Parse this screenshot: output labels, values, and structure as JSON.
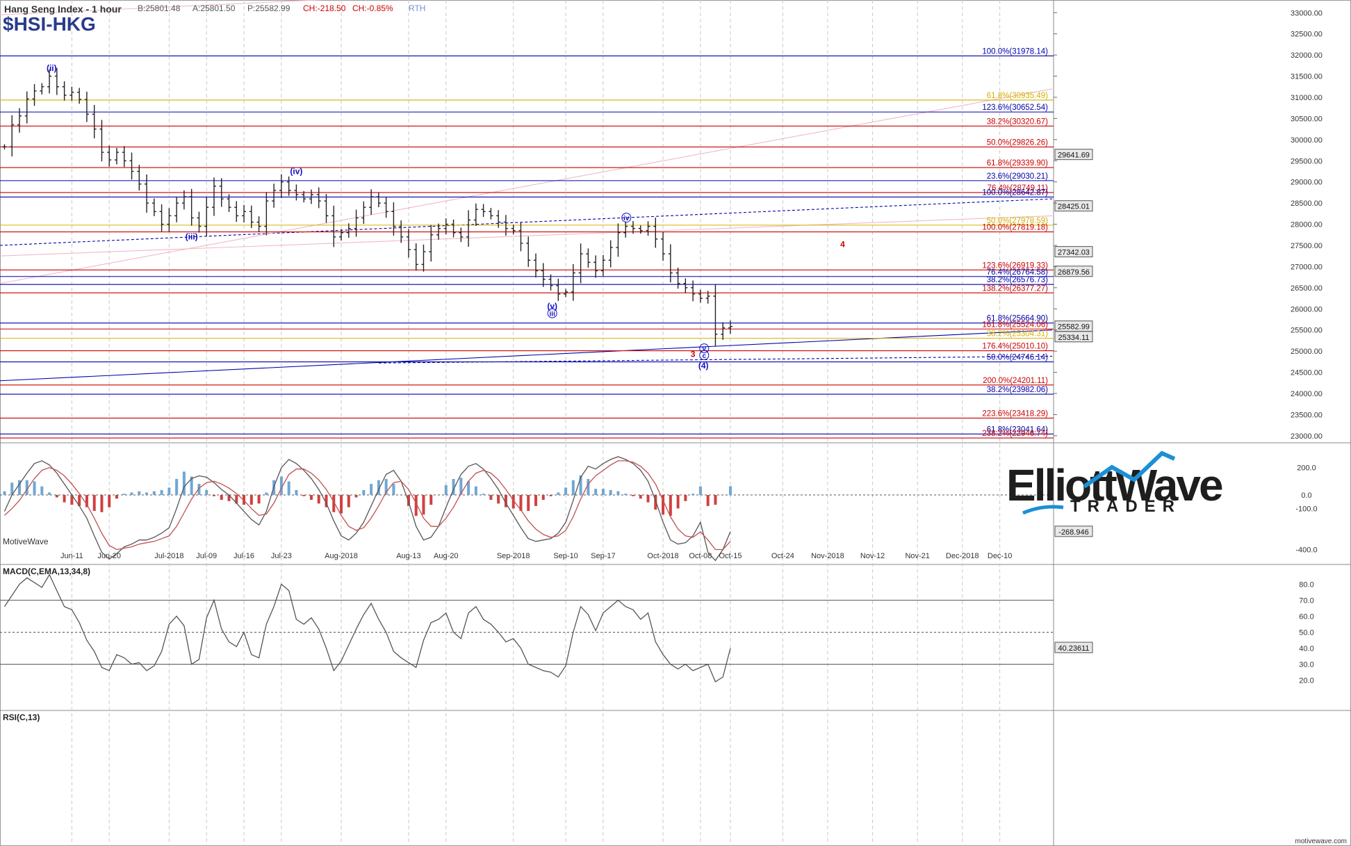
{
  "header": {
    "title": "Hang Seng Index - 1 hour",
    "bid": "B:25801.48",
    "ask": "A:25801.50",
    "price": "P:25582.99",
    "change": "CH:-218.50",
    "change_pct": "CH:-0.85%",
    "session": "RTH",
    "symbol": "$HSI-HKG"
  },
  "watermark": {
    "line1": "ElliottWave",
    "line2": "TRADER",
    "brand": "MotiveWave",
    "footer": "motivewave.com"
  },
  "colors": {
    "bars": "#222222",
    "fib_red": "#cc0000",
    "fib_blue": "#0000aa",
    "fib_gold": "#d4b000",
    "label_blue": "#1010c0",
    "label_red": "#d40000",
    "macd_up": "#6fa7d4",
    "macd_down": "#d04040",
    "macd_line": "#555555",
    "signal_line": "#c05050",
    "rsi_line": "#555555"
  },
  "chart_data": [
    {
      "type": "line",
      "name": "price",
      "title": "Hang Seng Index - 1 hour",
      "ylim": [
        22850,
        33300
      ],
      "y_ticks": [
        23000,
        23500,
        24000,
        24500,
        25000,
        25500,
        26000,
        26500,
        27000,
        27500,
        28000,
        28500,
        29000,
        29500,
        30000,
        30500,
        31000,
        31500,
        32000,
        32500,
        33000
      ],
      "y_tick_labels": [
        "23000.00",
        "23500.00",
        "24000.00",
        "24500.00",
        "25000.00",
        "25500.00",
        "26000.00",
        "26500.00",
        "27000.00",
        "27500.00",
        "28000.00",
        "28500.00",
        "29000.00",
        "29500.00",
        "30000.00",
        "30500.00",
        "31000.00",
        "31500.00",
        "32000.00",
        "32500.00",
        "33000.00"
      ],
      "x_labels": [
        "Jun-11",
        "Jun-20",
        "Jul-2018",
        "Jul-09",
        "Jul-16",
        "Jul-23",
        "Aug-2018",
        "Aug-13",
        "Aug-20",
        "Sep-2018",
        "Sep-10",
        "Sep-17",
        "Oct-2018",
        "Oct-08",
        "Oct-15",
        "Oct-24",
        "Nov-2018",
        "Nov-12",
        "Nov-21",
        "Dec-2018",
        "Dec-10"
      ],
      "x_label_index": [
        9,
        14,
        22,
        27,
        32,
        37,
        45,
        54,
        59,
        68,
        75,
        80,
        88,
        93,
        97,
        104,
        110,
        116,
        122,
        128,
        133
      ],
      "x_index_range": [
        -0.6,
        140
      ],
      "closes": [
        29830,
        30350,
        30560,
        30960,
        31150,
        31250,
        31500,
        31250,
        31050,
        31120,
        30950,
        30600,
        30250,
        29700,
        29520,
        29700,
        29500,
        29250,
        28950,
        28500,
        28300,
        28000,
        28200,
        28500,
        28650,
        28150,
        27950,
        28400,
        28900,
        28600,
        28400,
        28200,
        28300,
        28050,
        27950,
        28550,
        28800,
        29000,
        28800,
        28700,
        28600,
        28700,
        28550,
        28200,
        27700,
        27800,
        27900,
        28150,
        28400,
        28650,
        28500,
        28300,
        27950,
        27700,
        27400,
        27050,
        27350,
        27750,
        27900,
        28000,
        27800,
        27700,
        28100,
        28350,
        28300,
        28200,
        28050,
        27900,
        27850,
        27550,
        27150,
        26900,
        26700,
        26550,
        26350,
        26400,
        26850,
        27300,
        27100,
        26900,
        27150,
        27450,
        27800,
        27950,
        27900,
        27850,
        27950,
        27650,
        27300,
        26850,
        26600,
        26500,
        26350,
        26250,
        26300,
        25400,
        25550,
        25583
      ],
      "annotations": [
        {
          "text": "(ii)",
          "i": 6.3,
          "v": 31620,
          "color": "blue"
        },
        {
          "text": "(iii)",
          "i": 25,
          "v": 27640,
          "color": "blue"
        },
        {
          "text": "(iv)",
          "i": 39,
          "v": 29180,
          "color": "blue"
        },
        {
          "text": "(v)",
          "i": 73.2,
          "v": 26000,
          "color": "blue"
        },
        {
          "text": "iii",
          "i": 73.2,
          "v": 25830,
          "color": "blue",
          "circled": true
        },
        {
          "text": "iv",
          "i": 83.1,
          "v": 28090,
          "color": "blue",
          "circled": true
        },
        {
          "text": "v",
          "i": 93.5,
          "v": 25000,
          "color": "blue",
          "circled": true
        },
        {
          "text": "c",
          "i": 93.5,
          "v": 24840,
          "color": "blue",
          "circled": true
        },
        {
          "text": "3",
          "i": 92,
          "v": 24860,
          "color": "red"
        },
        {
          "text": "(4)",
          "i": 93.4,
          "v": 24590,
          "color": "blue"
        },
        {
          "text": "4",
          "i": 112,
          "v": 27460,
          "color": "red"
        }
      ],
      "fib_levels": [
        {
          "label": "100.0%(31978.14)",
          "v": 31978.14,
          "color": "blue"
        },
        {
          "label": "61.8%(30935.49)",
          "v": 30935.49,
          "color": "gold"
        },
        {
          "label": "123.6%(30652.54)",
          "v": 30652.54,
          "color": "blue"
        },
        {
          "label": "38.2%(30320.67)",
          "v": 30320.67,
          "color": "red"
        },
        {
          "label": "50.0%(29826.26)",
          "v": 29826.26,
          "color": "red"
        },
        {
          "label": "61.8%(29339.90)",
          "v": 29339.9,
          "color": "red"
        },
        {
          "label": "23.6%(29030.21)",
          "v": 29030.21,
          "color": "blue"
        },
        {
          "label": "76.4%(28749.11)",
          "v": 28749.11,
          "color": "red"
        },
        {
          "label": "100.0%(28642.87)",
          "v": 28642.87,
          "color": "blue"
        },
        {
          "label": "50.0%(27978.59)",
          "v": 27978.59,
          "color": "gold"
        },
        {
          "label": "100.0%(27819.18)",
          "v": 27819.18,
          "color": "red"
        },
        {
          "label": "123.6%(26919.33)",
          "v": 26919.33,
          "color": "red"
        },
        {
          "label": "76.4%(26764.58)",
          "v": 26764.58,
          "color": "blue"
        },
        {
          "label": "38.2%(26576.73)",
          "v": 26576.73,
          "color": "blue"
        },
        {
          "label": "138.2%(26377.27)",
          "v": 26377.27,
          "color": "red"
        },
        {
          "label": "61.8%(25664.90)",
          "v": 25664.9,
          "color": "blue"
        },
        {
          "label": "161.8%(25524.06)",
          "v": 25524.06,
          "color": "red"
        },
        {
          "label": "38.2%(25304.31)",
          "v": 25304.31,
          "color": "gold"
        },
        {
          "label": "176.4%(25010.10)",
          "v": 25010.1,
          "color": "red"
        },
        {
          "label": "50.0%(24746.14)",
          "v": 24746.14,
          "color": "blue"
        },
        {
          "label": "200.0%(24201.11)",
          "v": 24201.11,
          "color": "red"
        },
        {
          "label": "38.2%(23982.06)",
          "v": 23982.06,
          "color": "blue"
        },
        {
          "label": "223.6%(23418.29)",
          "v": 23418.29,
          "color": "red"
        },
        {
          "label": "61.8%(23041.64)",
          "v": 23041.64,
          "color": "blue"
        },
        {
          "label": "238.2%(22946.74)",
          "v": 22946.74,
          "color": "red"
        }
      ],
      "price_tags": [
        {
          "label": "29641.69",
          "v": 29641.69
        },
        {
          "label": "28425.01",
          "v": 28425.01
        },
        {
          "label": "27342.03",
          "v": 27342.03
        },
        {
          "label": "26879.56",
          "v": 26879.56
        },
        {
          "label": "25582.99",
          "v": 25582.99
        },
        {
          "label": "25334.11",
          "v": 25334.11
        }
      ],
      "trendlines": [
        {
          "from": [
            -0.6,
            27500
          ],
          "to": [
            140,
            28600
          ],
          "color": "blue",
          "dashed": true
        },
        {
          "from": [
            -0.6,
            24300
          ],
          "to": [
            140,
            25500
          ],
          "color": "blue",
          "dashed": false
        },
        {
          "from": [
            50,
            24720
          ],
          "to": [
            140,
            24880
          ],
          "color": "blue",
          "dashed": true
        },
        {
          "from": [
            -0.6,
            26600
          ],
          "to": [
            140,
            31200
          ],
          "color": "pink",
          "dashed": false
        },
        {
          "from": [
            -0.6,
            27250
          ],
          "to": [
            140,
            28200
          ],
          "color": "pink",
          "dashed": false
        },
        {
          "from": [
            -0.6,
            32950
          ],
          "to": [
            78,
            33600
          ],
          "color": "pink",
          "dashed": false
        }
      ]
    },
    {
      "type": "line",
      "name": "macd",
      "title": "MACD(C,EMA,13,34,8)",
      "ylim": [
        -550,
        280
      ],
      "y_ticks": [
        200,
        0,
        -100,
        -400
      ],
      "y_tick_labels": [
        "200.0",
        "0.0",
        "-100.0",
        "-400.0"
      ],
      "last_value": "-268.946",
      "macd": [
        -120,
        0,
        80,
        160,
        230,
        250,
        220,
        160,
        80,
        0,
        -80,
        -170,
        -300,
        -420,
        -470,
        -430,
        -380,
        -360,
        -330,
        -330,
        -310,
        -280,
        -240,
        -100,
        60,
        120,
        140,
        130,
        90,
        40,
        0,
        -60,
        -120,
        -180,
        -220,
        -120,
        60,
        200,
        260,
        230,
        180,
        120,
        40,
        -60,
        -190,
        -300,
        -330,
        -280,
        -200,
        -80,
        40,
        150,
        180,
        100,
        -50,
        -230,
        -330,
        -310,
        -230,
        -90,
        40,
        150,
        210,
        230,
        190,
        120,
        40,
        -60,
        -150,
        -240,
        -320,
        -340,
        -330,
        -320,
        -280,
        -200,
        -40,
        130,
        210,
        190,
        230,
        260,
        280,
        260,
        230,
        180,
        100,
        -40,
        -200,
        -330,
        -360,
        -350,
        -300,
        -200,
        -420,
        -480,
        -400,
        -269
      ],
      "signal": [
        -150,
        -100,
        -40,
        40,
        120,
        180,
        200,
        180,
        140,
        80,
        10,
        -70,
        -170,
        -280,
        -370,
        -400,
        -390,
        -380,
        -360,
        -350,
        -340,
        -320,
        -300,
        -230,
        -130,
        -30,
        50,
        90,
        100,
        80,
        50,
        10,
        -40,
        -100,
        -150,
        -140,
        -60,
        50,
        150,
        190,
        190,
        160,
        110,
        40,
        -50,
        -150,
        -230,
        -260,
        -240,
        -170,
        -80,
        20,
        90,
        100,
        40,
        -60,
        -170,
        -230,
        -230,
        -170,
        -90,
        10,
        100,
        160,
        180,
        160,
        110,
        40,
        -40,
        -110,
        -190,
        -250,
        -290,
        -310,
        -300,
        -260,
        -160,
        -30,
        80,
        140,
        180,
        220,
        250,
        250,
        240,
        210,
        160,
        80,
        -40,
        -160,
        -250,
        -300,
        -310,
        -270,
        -330,
        -400,
        -400,
        -340
      ]
    },
    {
      "type": "line",
      "name": "rsi",
      "title": "RSI(C,13)",
      "ylim": [
        15,
        88
      ],
      "y_ticks": [
        80,
        70,
        60,
        50,
        40,
        30,
        20
      ],
      "y_tick_labels": [
        "80.0",
        "70.0",
        "60.0",
        "50.0",
        "40.0",
        "30.0",
        "20.0"
      ],
      "reference_levels": [
        70,
        50,
        30
      ],
      "last_value": "40.23611",
      "values": [
        66,
        73,
        80,
        84,
        81,
        78,
        86,
        76,
        66,
        64,
        56,
        45,
        38,
        28,
        26,
        36,
        34,
        30,
        31,
        26,
        29,
        38,
        55,
        60,
        54,
        30,
        33,
        59,
        70,
        52,
        44,
        41,
        50,
        36,
        34,
        55,
        66,
        80,
        76,
        58,
        55,
        59,
        52,
        40,
        26,
        32,
        42,
        52,
        61,
        68,
        58,
        50,
        38,
        34,
        31,
        28,
        45,
        56,
        58,
        62,
        50,
        46,
        62,
        66,
        58,
        55,
        50,
        44,
        46,
        40,
        30,
        28,
        26,
        25,
        22,
        29,
        50,
        66,
        61,
        51,
        62,
        66,
        70,
        66,
        64,
        58,
        62,
        44,
        36,
        30,
        27,
        30,
        26,
        28,
        30,
        19,
        22,
        40
      ]
    }
  ]
}
